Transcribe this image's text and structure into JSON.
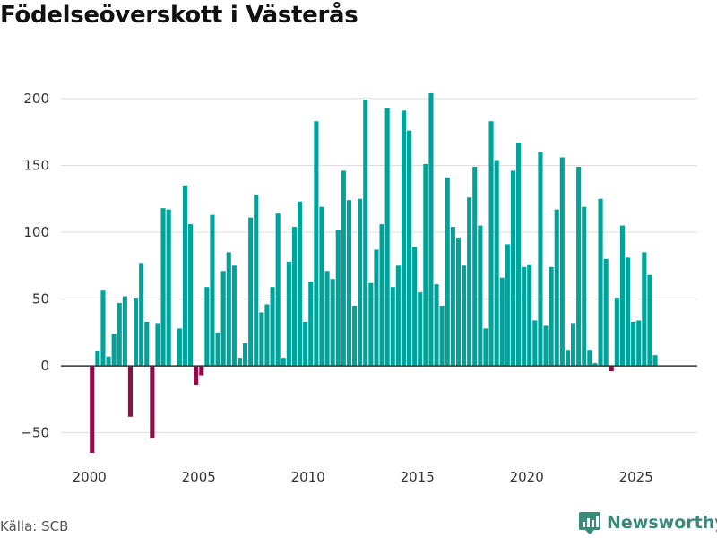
{
  "title": "Födelseöverskott i Västerås",
  "source": "Källa: SCB",
  "brand": "Newsworthy",
  "colors": {
    "positive": "#00a39a",
    "negative": "#8e0d4b",
    "grid": "#dddddd",
    "zero": "#333333",
    "brand": "#3a8a7c"
  },
  "chart_data": {
    "type": "bar",
    "title": "Födelseöverskott i Västerås",
    "xlabel": "",
    "ylabel": "",
    "xlim": [
      1998.7,
      2027.8
    ],
    "ylim": [
      -67,
      210
    ],
    "x_ticks": [
      2000,
      2005,
      2010,
      2015,
      2020,
      2025
    ],
    "y_ticks": [
      -50,
      0,
      50,
      100,
      150,
      200
    ],
    "bar_width_years": 0.21,
    "x_start": 2000.125,
    "x_step": 0.25,
    "values": [
      -65,
      11,
      57,
      7,
      24,
      47,
      52,
      -38,
      51,
      77,
      33,
      -54,
      32,
      118,
      117,
      0,
      28,
      135,
      106,
      -14,
      -7,
      59,
      113,
      25,
      71,
      85,
      75,
      6,
      17,
      111,
      128,
      40,
      46,
      59,
      114,
      6,
      78,
      104,
      123,
      33,
      63,
      183,
      119,
      71,
      65,
      102,
      146,
      124,
      45,
      125,
      199,
      62,
      87,
      106,
      193,
      59,
      75,
      191,
      176,
      89,
      55,
      151,
      204,
      61,
      45,
      141,
      104,
      96,
      75,
      126,
      149,
      105,
      28,
      183,
      154,
      66,
      91,
      146,
      167,
      74,
      76,
      34,
      160,
      30,
      74,
      117,
      156,
      12,
      32,
      149,
      119,
      12,
      2,
      125,
      80,
      -4,
      51,
      105,
      81,
      33,
      34,
      85,
      68,
      8
    ]
  }
}
